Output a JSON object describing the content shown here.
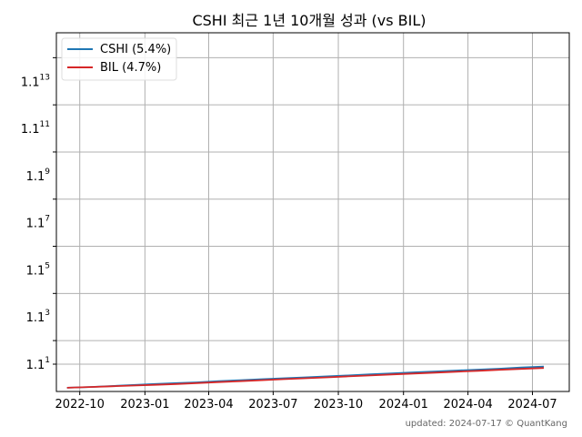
{
  "chart_data": {
    "type": "line",
    "title": "CSHI 최근 1년 10개월 성과 (vs BIL)",
    "xlabel": "",
    "ylabel": "",
    "y_scale": "log",
    "grid": true,
    "legend_position": "top-left",
    "x_ticks": [
      "2022-10-01",
      "2023-01-01",
      "2023-04-01",
      "2023-07-01",
      "2023-10-01",
      "2024-01-01",
      "2024-04-01",
      "2024-07-01"
    ],
    "x_tick_labels": [
      "2022-10",
      "2023-01",
      "2023-04",
      "2023-07",
      "2023-10",
      "2024-01",
      "2024-04",
      "2024-07"
    ],
    "y_ticks": [
      1.1,
      1.21,
      1.4641,
      1.771561,
      2.14358881,
      2.59374246,
      3.13842838,
      3.79749834,
      4.59497299,
      5.55991731,
      6.72749995,
      8.14027494,
      9.84973268,
      11.91817654,
      14.42099361,
      17.44940227,
      21.11377674,
      25.54766986,
      30.91268053,
      37.40434344
    ],
    "y_tick_labels": [
      {
        "base": "1.1",
        "exp": "1"
      },
      {
        "base": "1.1",
        "exp": "3"
      },
      {
        "base": "1.1",
        "exp": "5"
      },
      {
        "base": "1.1",
        "exp": "7"
      },
      {
        "base": "1.1",
        "exp": "9"
      },
      {
        "base": "1.1",
        "exp": "11"
      },
      {
        "base": "1.1",
        "exp": "13"
      }
    ],
    "y_label_values": [
      1.1,
      1.331,
      1.61051,
      1.9487171,
      2.35794769,
      2.85311671,
      3.45227122
    ],
    "series": [
      {
        "name": "CSHI (5.4%)",
        "color": "#1f77b4",
        "x": [
          "2022-09-13",
          "2022-10-15",
          "2022-11-15",
          "2022-12-15",
          "2023-01-15",
          "2023-02-15",
          "2023-03-15",
          "2023-04-15",
          "2023-05-15",
          "2023-06-15",
          "2023-07-15",
          "2023-08-15",
          "2023-09-15",
          "2023-10-15",
          "2023-11-15",
          "2023-12-15",
          "2024-01-15",
          "2024-02-15",
          "2024-03-15",
          "2024-04-15",
          "2024-05-15",
          "2024-06-15",
          "2024-07-17"
        ],
        "y": [
          1.0,
          1.003,
          1.007,
          1.011,
          1.015,
          1.019,
          1.022,
          1.027,
          1.031,
          1.035,
          1.039,
          1.043,
          1.047,
          1.051,
          1.056,
          1.06,
          1.064,
          1.068,
          1.072,
          1.076,
          1.08,
          1.085,
          1.089
        ]
      },
      {
        "name": "BIL (4.7%)",
        "color": "#d62728",
        "x": [
          "2022-09-13",
          "2022-10-15",
          "2022-11-15",
          "2022-12-15",
          "2023-01-15",
          "2023-02-15",
          "2023-03-15",
          "2023-04-15",
          "2023-05-15",
          "2023-06-15",
          "2023-07-15",
          "2023-08-15",
          "2023-09-15",
          "2023-10-15",
          "2023-11-15",
          "2023-12-15",
          "2024-01-15",
          "2024-02-15",
          "2024-03-15",
          "2024-04-15",
          "2024-05-15",
          "2024-06-15",
          "2024-07-17"
        ],
        "y": [
          1.0,
          1.003,
          1.006,
          1.009,
          1.012,
          1.015,
          1.019,
          1.023,
          1.027,
          1.031,
          1.035,
          1.039,
          1.043,
          1.047,
          1.051,
          1.055,
          1.059,
          1.063,
          1.067,
          1.071,
          1.075,
          1.079,
          1.083
        ]
      }
    ]
  },
  "footer": {
    "updated": "updated: 2024-07-17 © QuantKang"
  }
}
